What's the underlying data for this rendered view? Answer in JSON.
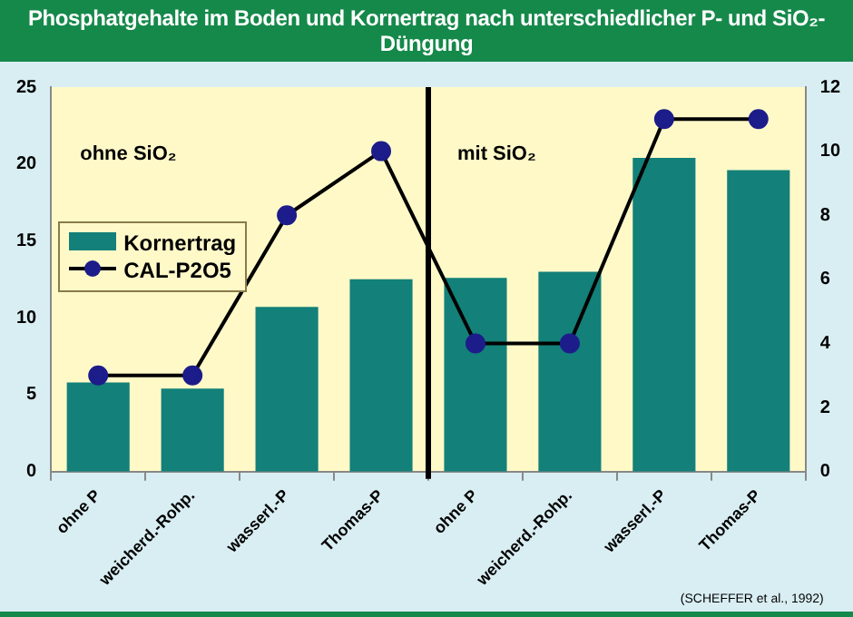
{
  "chart_data": {
    "type": "bar",
    "title": "Phosphatgehalte im Boden und Kornertrag nach unterschiedlicher P- und SiO₂-Düngung",
    "categories": [
      "ohne P",
      "weicherd.-Rohp.",
      "wasserl.-P",
      "Thomas-P",
      "ohne P",
      "weicherd.-Rohp.",
      "wasserl.-P",
      "Thomas-P"
    ],
    "series": [
      {
        "name": "Kornertrag",
        "color": "#138079",
        "values": [
          5.8,
          5.4,
          10.7,
          12.5,
          12.6,
          13.0,
          20.4,
          19.6
        ]
      },
      {
        "name": "CAL-P2O5",
        "type": "line",
        "axis": "y2",
        "color": "#000000",
        "values": [
          3,
          3,
          8,
          10,
          4,
          4,
          11,
          11
        ]
      }
    ],
    "ylim": [
      0,
      25
    ],
    "yticks": [
      0,
      5,
      10,
      15,
      20,
      25
    ],
    "y2lim": [
      0,
      12
    ],
    "y2ticks": [
      0,
      2,
      4,
      6,
      8,
      10,
      12
    ],
    "grid": false,
    "legend": "left",
    "marker": "circle",
    "line_style": "solid",
    "annotations": [
      "ohne SiO₂",
      "mit SiO₂",
      "(SCHEFFER et al., 1992)"
    ]
  }
}
